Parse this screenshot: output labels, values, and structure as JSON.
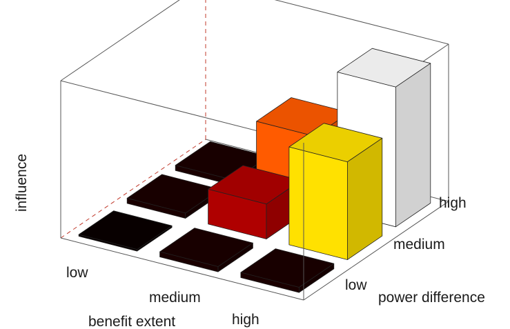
{
  "chart_data": {
    "type": "bar3d",
    "title": "",
    "zlabel": "influence",
    "xlabel": "benefit extent",
    "ylabel": "power difference",
    "x_categories": [
      "low",
      "medium",
      "high"
    ],
    "y_categories": [
      "low",
      "medium",
      "high"
    ],
    "zlim": [
      0,
      4.5
    ],
    "colormap": "hot",
    "color_range": [
      0,
      4
    ],
    "bars": [
      {
        "x": "low",
        "y": "low",
        "value": 0.05
      },
      {
        "x": "medium",
        "y": "low",
        "value": 0.15
      },
      {
        "x": "high",
        "y": "low",
        "value": 0.15
      },
      {
        "x": "low",
        "y": "medium",
        "value": 0.15
      },
      {
        "x": "medium",
        "y": "medium",
        "value": 1.0
      },
      {
        "x": "high",
        "y": "medium",
        "value": 2.8
      },
      {
        "x": "low",
        "y": "high",
        "value": 0.15
      },
      {
        "x": "medium",
        "y": "high",
        "value": 2.0
      },
      {
        "x": "high",
        "y": "high",
        "value": 4.0
      }
    ]
  }
}
